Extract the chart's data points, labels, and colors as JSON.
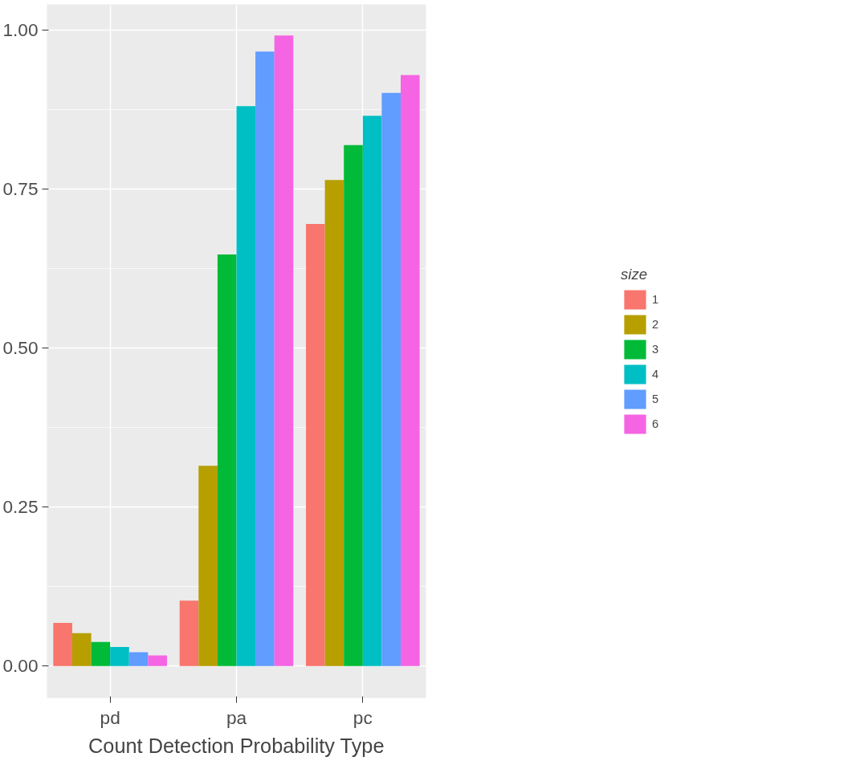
{
  "chart_data": {
    "type": "bar",
    "xlabel": "Count Detection Probability Type",
    "legend_title": "size",
    "categories": [
      "pd",
      "pa",
      "pc"
    ],
    "series": [
      {
        "name": "1",
        "color": "#f8766d",
        "values": [
          0.068,
          0.103,
          0.695
        ]
      },
      {
        "name": "2",
        "color": "#b79f00",
        "values": [
          0.052,
          0.315,
          0.764
        ]
      },
      {
        "name": "3",
        "color": "#00ba38",
        "values": [
          0.038,
          0.647,
          0.819
        ]
      },
      {
        "name": "4",
        "color": "#00bfc4",
        "values": [
          0.03,
          0.88,
          0.865
        ]
      },
      {
        "name": "5",
        "color": "#619cff",
        "values": [
          0.022,
          0.966,
          0.901
        ]
      },
      {
        "name": "6",
        "color": "#f564e3",
        "values": [
          0.017,
          0.991,
          0.929
        ]
      }
    ],
    "ylim": [
      -0.05,
      1.04
    ],
    "yticks": [
      {
        "value": 0,
        "label": "0.00"
      },
      {
        "value": 0.25,
        "label": "0.25"
      },
      {
        "value": 0.5,
        "label": "0.50"
      },
      {
        "value": 0.75,
        "label": "0.75"
      },
      {
        "value": 1,
        "label": "1.00"
      }
    ],
    "grid": true,
    "legend": "right"
  }
}
